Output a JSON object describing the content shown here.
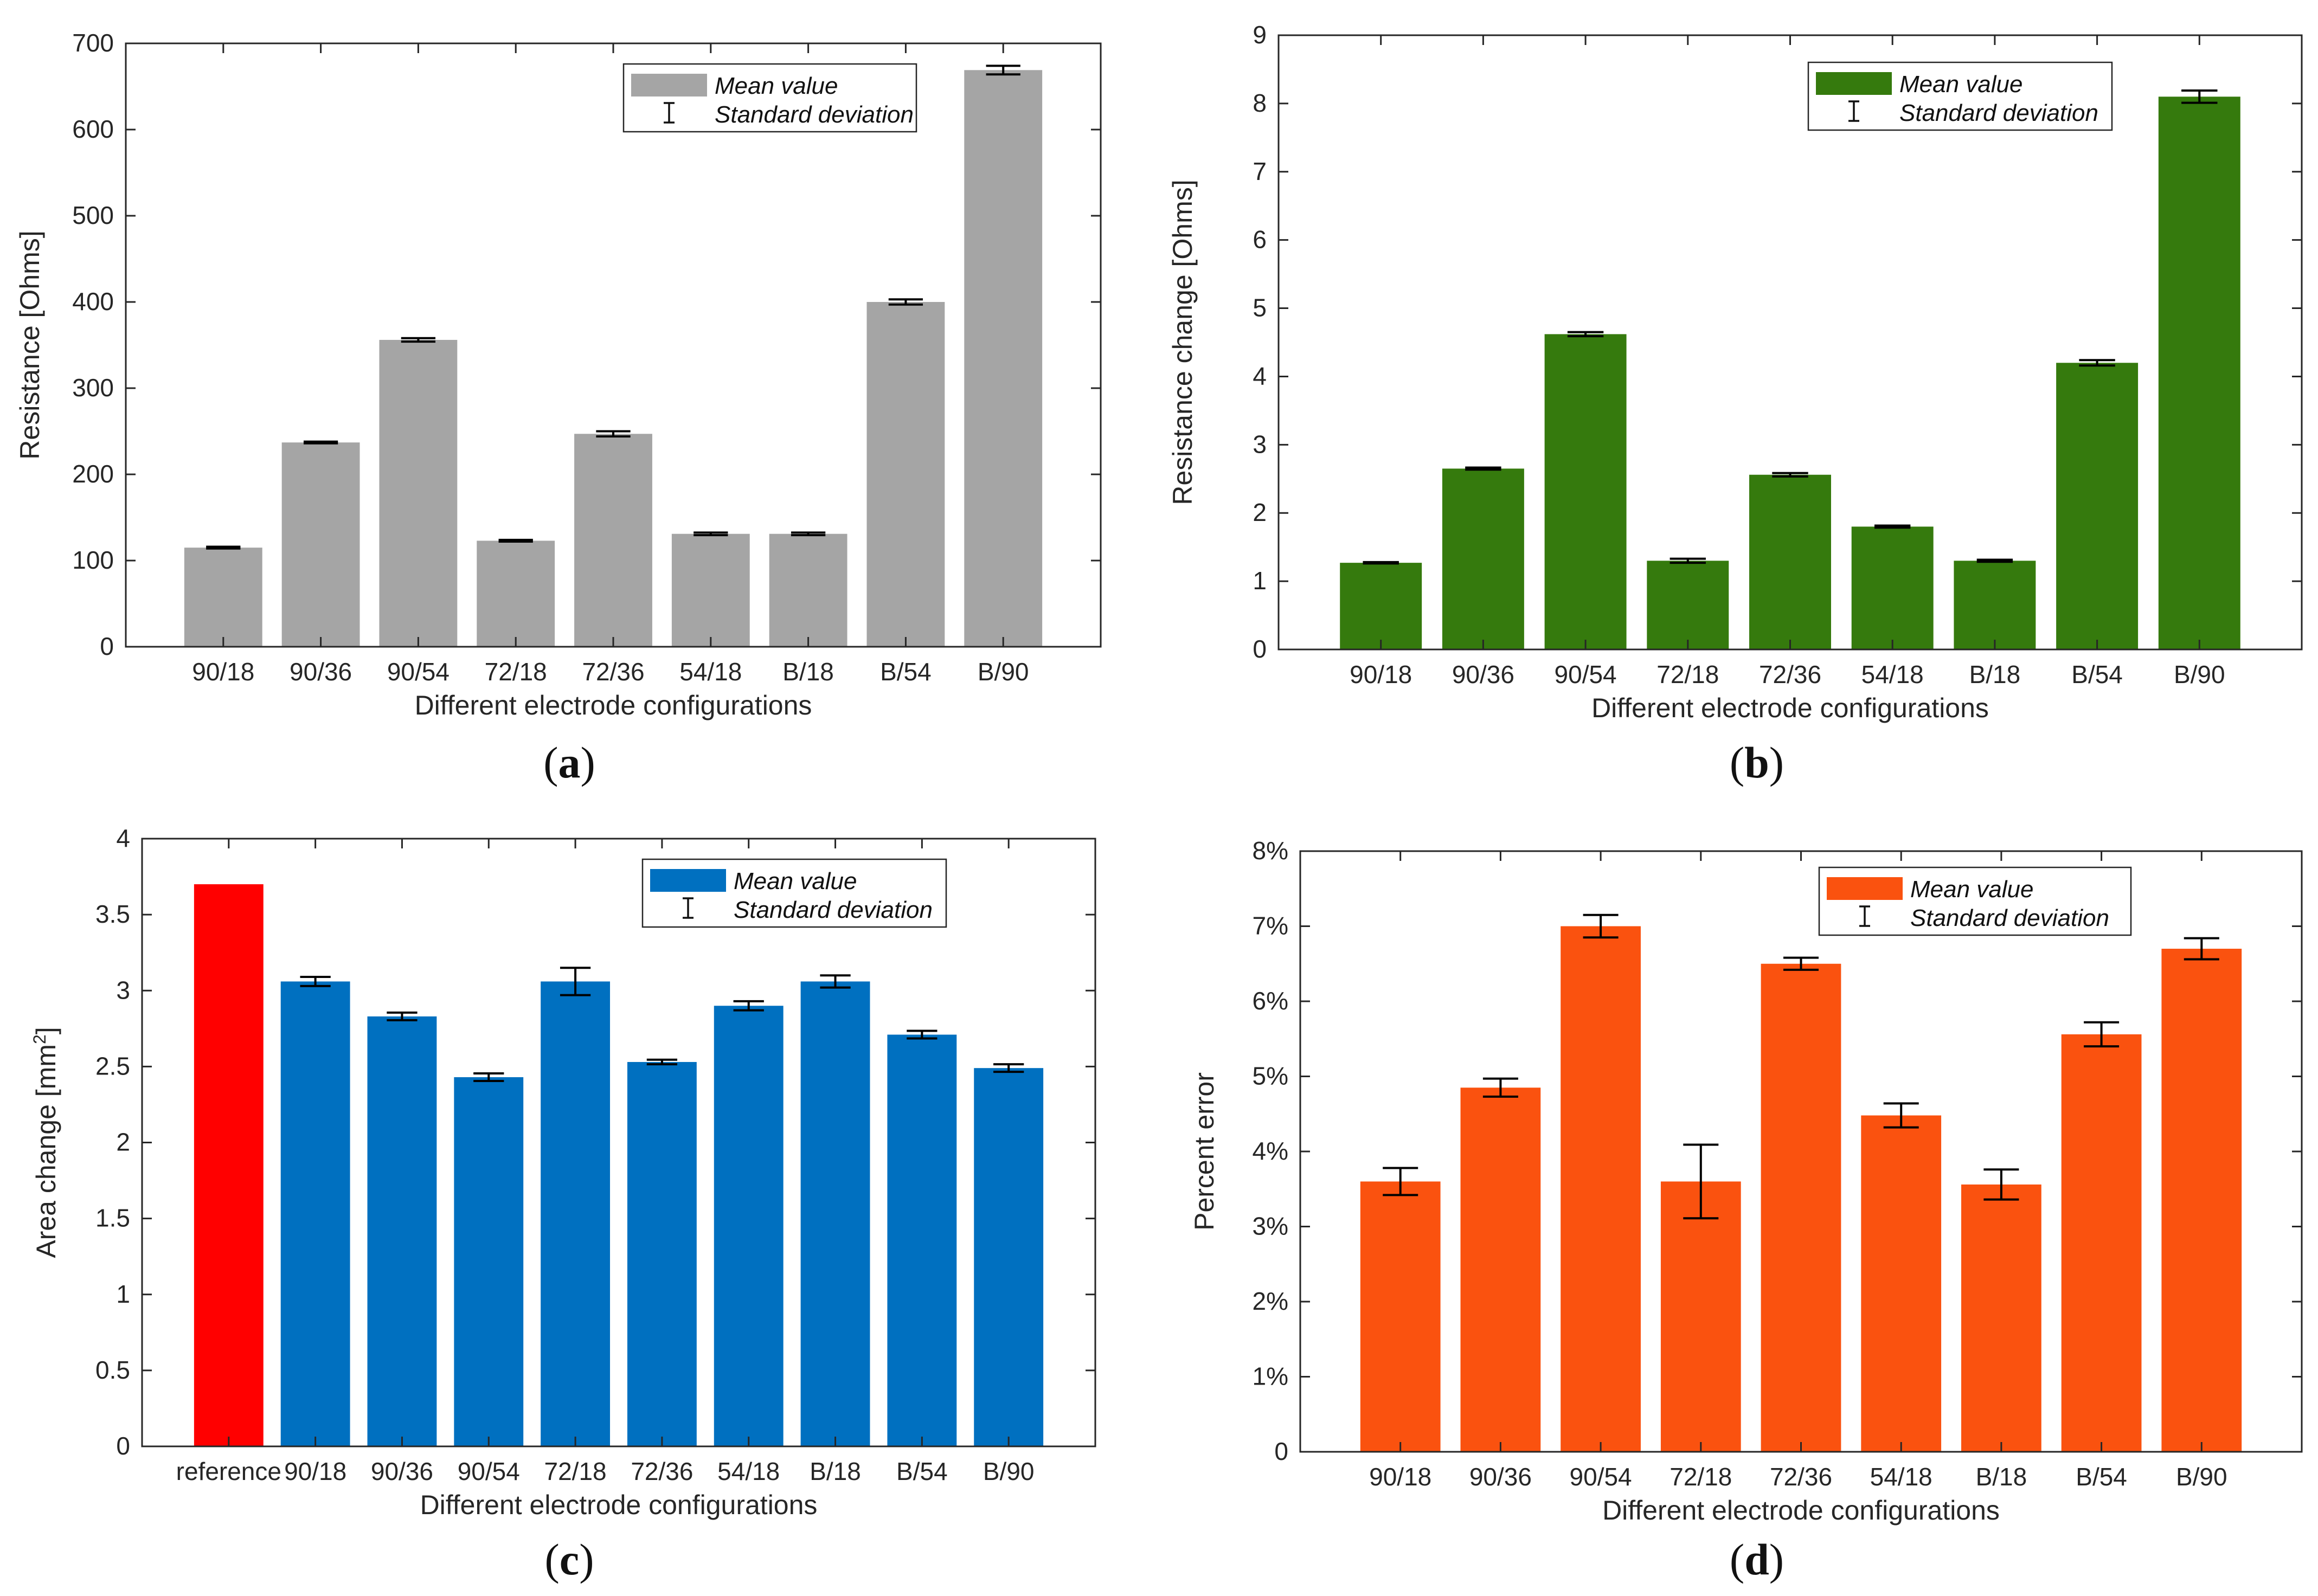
{
  "figure": {
    "panels": [
      {
        "key": "a",
        "label": "(a)",
        "chart_data": {
          "type": "bar",
          "title": "",
          "xlabel": "Different electrode configurations",
          "ylabel": "Resistance [Ohms]",
          "categories": [
            "90/18",
            "90/36",
            "90/54",
            "72/18",
            "72/36",
            "54/18",
            "B/18",
            "B/54",
            "B/90"
          ],
          "values": [
            115,
            237,
            356,
            123,
            247,
            131,
            131,
            400,
            669
          ],
          "errors": [
            1,
            1,
            2,
            1,
            3,
            1.5,
            1.5,
            3,
            5
          ],
          "bar_colors": [
            "#a5a5a5",
            "#a5a5a5",
            "#a5a5a5",
            "#a5a5a5",
            "#a5a5a5",
            "#a5a5a5",
            "#a5a5a5",
            "#a5a5a5",
            "#a5a5a5"
          ],
          "ylim": [
            0,
            700
          ],
          "yticks": [
            0,
            100,
            200,
            300,
            400,
            500,
            600,
            700
          ],
          "ytick_labels": [
            "0",
            "100",
            "200",
            "300",
            "400",
            "500",
            "600",
            "700"
          ],
          "legend": {
            "position": "top-right",
            "mean_label": "Mean value",
            "std_label": "Standard deviation",
            "swatch_color": "#a5a5a5"
          },
          "grid": false
        }
      },
      {
        "key": "b",
        "label": "(b)",
        "chart_data": {
          "type": "bar",
          "title": "",
          "xlabel": "Different electrode configurations",
          "ylabel": "Resistance change [Ohms]",
          "categories": [
            "90/18",
            "90/36",
            "90/54",
            "72/18",
            "72/36",
            "54/18",
            "B/18",
            "B/54",
            "B/90"
          ],
          "values": [
            1.27,
            2.65,
            4.62,
            1.3,
            2.56,
            1.8,
            1.3,
            4.2,
            8.1
          ],
          "errors": [
            0.01,
            0.015,
            0.03,
            0.03,
            0.025,
            0.015,
            0.015,
            0.04,
            0.09
          ],
          "bar_colors": [
            "#357a0d",
            "#357a0d",
            "#357a0d",
            "#357a0d",
            "#357a0d",
            "#357a0d",
            "#357a0d",
            "#357a0d",
            "#357a0d"
          ],
          "ylim": [
            0,
            9
          ],
          "yticks": [
            0,
            1,
            2,
            3,
            4,
            5,
            6,
            7,
            8,
            9
          ],
          "ytick_labels": [
            "0",
            "1",
            "2",
            "3",
            "4",
            "5",
            "6",
            "7",
            "8",
            "9"
          ],
          "legend": {
            "position": "top-right",
            "mean_label": "Mean value",
            "std_label": "Standard deviation",
            "swatch_color": "#357a0d"
          },
          "grid": false
        }
      },
      {
        "key": "c",
        "label": "(c)",
        "chart_data": {
          "type": "bar",
          "title": "",
          "xlabel": "Different electrode configurations",
          "ylabel": "Area change [mm",
          "ylabel_sup": "2",
          "ylabel_end": "]",
          "categories": [
            "reference",
            "90/18",
            "90/36",
            "90/54",
            "72/18",
            "72/36",
            "54/18",
            "B/18",
            "B/54",
            "B/90"
          ],
          "values": [
            3.7,
            3.06,
            2.83,
            2.43,
            3.06,
            2.53,
            2.9,
            3.06,
            2.71,
            2.49
          ],
          "errors": [
            0,
            0.03,
            0.025,
            0.025,
            0.09,
            0.015,
            0.03,
            0.04,
            0.025,
            0.025
          ],
          "bar_colors": [
            "#ff0000",
            "#0070c0",
            "#0070c0",
            "#0070c0",
            "#0070c0",
            "#0070c0",
            "#0070c0",
            "#0070c0",
            "#0070c0",
            "#0070c0"
          ],
          "ylim": [
            0,
            4
          ],
          "yticks": [
            0,
            0.5,
            1,
            1.5,
            2,
            2.5,
            3,
            3.5,
            4
          ],
          "ytick_labels": [
            "0",
            "0.5",
            "1",
            "1.5",
            "2",
            "2.5",
            "3",
            "3.5",
            "4"
          ],
          "legend": {
            "position": "top-right",
            "mean_label": "Mean value",
            "std_label": "Standard deviation",
            "swatch_color": "#0070c0"
          },
          "grid": false
        }
      },
      {
        "key": "d",
        "label": "(d)",
        "chart_data": {
          "type": "bar",
          "title": "",
          "xlabel": "Different electrode configurations",
          "ylabel": "Percent error",
          "categories": [
            "90/18",
            "90/36",
            "90/54",
            "72/18",
            "72/36",
            "54/18",
            "B/18",
            "B/54",
            "B/90"
          ],
          "values": [
            3.6,
            4.85,
            7.0,
            3.6,
            6.5,
            4.48,
            3.56,
            5.56,
            6.7
          ],
          "errors": [
            0.18,
            0.12,
            0.15,
            0.49,
            0.08,
            0.16,
            0.2,
            0.16,
            0.14
          ],
          "bar_colors": [
            "#fa520f",
            "#fa520f",
            "#fa520f",
            "#fa520f",
            "#fa520f",
            "#fa520f",
            "#fa520f",
            "#fa520f",
            "#fa520f"
          ],
          "ylim": [
            0,
            8
          ],
          "yticks": [
            0,
            1,
            2,
            3,
            4,
            5,
            6,
            7,
            8
          ],
          "ytick_labels": [
            "0",
            "1%",
            "2%",
            "3%",
            "4%",
            "5%",
            "6%",
            "7%",
            "8%"
          ],
          "legend": {
            "position": "top-right",
            "mean_label": "Mean value",
            "std_label": "Standard deviation",
            "swatch_color": "#fa520f"
          },
          "grid": false
        }
      }
    ]
  }
}
